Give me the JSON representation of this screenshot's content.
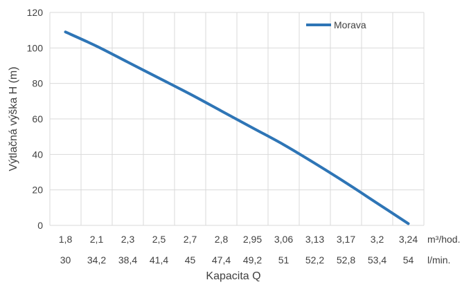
{
  "chart_data": {
    "type": "line",
    "ylabel": "Výtlačná výška H (m)",
    "xlabel": "Kapacita Q",
    "ylim": [
      0,
      120
    ],
    "yticks": [
      0,
      20,
      40,
      60,
      80,
      100,
      120
    ],
    "grid": true,
    "legend_position": "top-right",
    "categories_m3": [
      "1,8",
      "2,1",
      "2,3",
      "2,5",
      "2,7",
      "2,8",
      "2,95",
      "3,06",
      "3,13",
      "3,17",
      "3,2",
      "3,24"
    ],
    "categories_lmin": [
      "30",
      "34,2",
      "38,4",
      "41,4",
      "45",
      "47,4",
      "49,2",
      "51",
      "52,2",
      "52,8",
      "53,4",
      "54"
    ],
    "unit_m3": "m³/hod.",
    "unit_lmin": "l/min.",
    "series": [
      {
        "name": "Morava",
        "color": "#2e75b6",
        "values": [
          109,
          101,
          92,
          83,
          74,
          64.5,
          55,
          45.5,
          35,
          24,
          12.5,
          1
        ]
      }
    ]
  }
}
